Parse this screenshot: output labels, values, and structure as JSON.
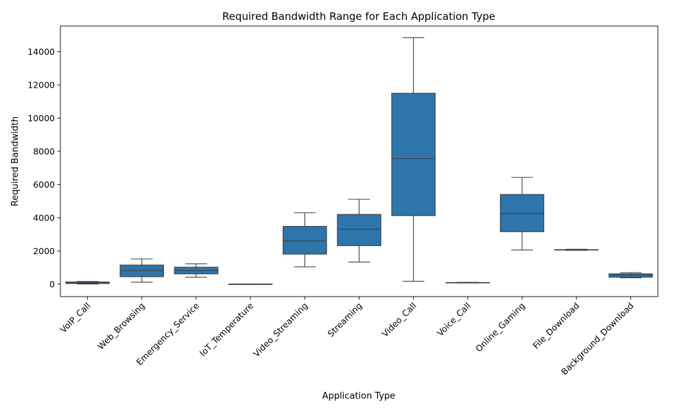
{
  "chart_data": {
    "type": "box",
    "title": "Required Bandwidth Range for Each Application Type",
    "xlabel": "Application Type",
    "ylabel": "Required Bandwidth",
    "ylim": [
      -750,
      15550
    ],
    "yticks": [
      0,
      2000,
      4000,
      6000,
      8000,
      10000,
      12000,
      14000
    ],
    "grid": false,
    "legend": "none",
    "colors": {
      "box": "#2e75ab",
      "line": "#3d3d3d"
    },
    "categories": [
      "VoIP_Call",
      "Web_Browsing",
      "Emergency_Service",
      "IoT_Temperature",
      "Video_Streaming",
      "Streaming",
      "Video_Call",
      "Voice_Call",
      "Online_Gaming",
      "File_Download",
      "Background_Download"
    ],
    "boxes": [
      {
        "min": 10,
        "q1": 40,
        "median": 70,
        "q3": 130,
        "max": 160
      },
      {
        "min": 120,
        "q1": 450,
        "median": 820,
        "q3": 1150,
        "max": 1520
      },
      {
        "min": 420,
        "q1": 620,
        "median": 820,
        "q3": 1020,
        "max": 1230
      },
      {
        "min": 1,
        "q1": 2,
        "median": 3,
        "q3": 4,
        "max": 5
      },
      {
        "min": 1040,
        "q1": 1810,
        "median": 2600,
        "q3": 3480,
        "max": 4300
      },
      {
        "min": 1330,
        "q1": 2320,
        "median": 3310,
        "q3": 4200,
        "max": 5110
      },
      {
        "min": 170,
        "q1": 4130,
        "median": 7570,
        "q3": 11500,
        "max": 14850
      },
      {
        "min": 70,
        "q1": 80,
        "median": 90,
        "q3": 100,
        "max": 110
      },
      {
        "min": 2060,
        "q1": 3160,
        "median": 4250,
        "q3": 5400,
        "max": 6430
      },
      {
        "min": 2040,
        "q1": 2060,
        "median": 2070,
        "q3": 2080,
        "max": 2100
      },
      {
        "min": 380,
        "q1": 420,
        "median": 550,
        "q3": 620,
        "max": 690
      }
    ]
  }
}
